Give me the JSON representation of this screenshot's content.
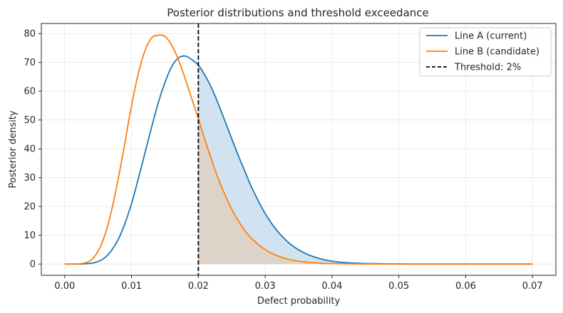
{
  "chart_data": {
    "type": "line",
    "title": "Posterior distributions and threshold exceedance",
    "xlabel": "Defect probability",
    "ylabel": "Posterior density",
    "xlim": [
      -0.0035,
      0.0735
    ],
    "ylim": [
      -3.9,
      83.5
    ],
    "xticks": [
      "0.00",
      "0.01",
      "0.02",
      "0.03",
      "0.04",
      "0.05",
      "0.06",
      "0.07"
    ],
    "yticks": [
      "0",
      "10",
      "20",
      "30",
      "40",
      "50",
      "60",
      "70",
      "80"
    ],
    "grid": true,
    "legend_position": "top-right",
    "threshold": {
      "x": 0.02,
      "label": "Threshold: 2%",
      "color": "#000000"
    },
    "series": [
      {
        "name": "Line A (current)",
        "color": "#1f77b4",
        "fill_color": "#c6dcee",
        "x": [
          0,
          0.002,
          0.004,
          0.005,
          0.006,
          0.007,
          0.008,
          0.009,
          0.01,
          0.011,
          0.012,
          0.013,
          0.014,
          0.015,
          0.016,
          0.017,
          0.018,
          0.019,
          0.02,
          0.021,
          0.022,
          0.023,
          0.024,
          0.025,
          0.026,
          0.027,
          0.028,
          0.03,
          0.032,
          0.034,
          0.036,
          0.038,
          0.04,
          0.042,
          0.045,
          0.05,
          0.055,
          0.06,
          0.07
        ],
        "y": [
          0,
          0.0,
          0.3,
          0.9,
          2.2,
          4.7,
          8.5,
          14.0,
          21.0,
          29.5,
          38.5,
          47.5,
          56.0,
          63.0,
          68.5,
          71.5,
          72.2,
          71.0,
          69.0,
          65.5,
          61.0,
          55.5,
          49.5,
          43.5,
          37.5,
          32.0,
          26.5,
          17.5,
          11.0,
          6.5,
          3.7,
          2.0,
          1.0,
          0.5,
          0.2,
          0.03,
          0.0,
          0.0,
          0.0
        ]
      },
      {
        "name": "Line B (candidate)",
        "color": "#ff7f0e",
        "fill_color": "#dfd0c4",
        "x": [
          0,
          0.002,
          0.003,
          0.004,
          0.005,
          0.006,
          0.007,
          0.008,
          0.009,
          0.01,
          0.011,
          0.012,
          0.013,
          0.014,
          0.015,
          0.016,
          0.017,
          0.018,
          0.019,
          0.02,
          0.021,
          0.022,
          0.023,
          0.024,
          0.025,
          0.026,
          0.027,
          0.028,
          0.03,
          0.032,
          0.034,
          0.036,
          0.038,
          0.04,
          0.045,
          0.05,
          0.06,
          0.07
        ],
        "y": [
          0,
          0.05,
          0.4,
          1.5,
          4.5,
          10.0,
          18.5,
          29.5,
          42.0,
          55.0,
          66.0,
          74.0,
          78.5,
          79.4,
          79.0,
          76.0,
          71.0,
          64.5,
          57.5,
          50.5,
          43.0,
          36.0,
          29.5,
          24.0,
          19.0,
          15.0,
          11.5,
          8.8,
          5.0,
          2.7,
          1.4,
          0.7,
          0.35,
          0.17,
          0.03,
          0.0,
          0.0,
          0.0
        ]
      }
    ]
  }
}
